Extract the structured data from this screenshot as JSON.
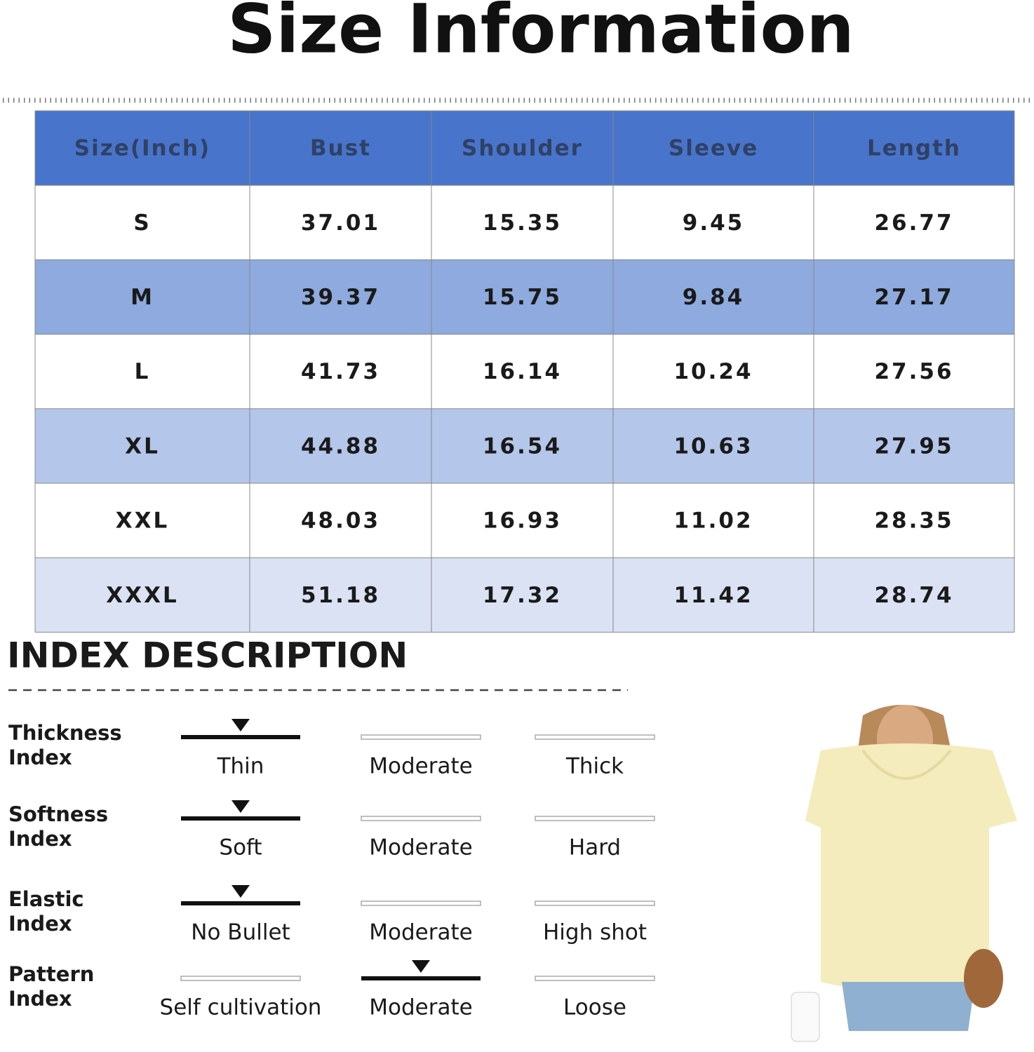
{
  "title": "Size Information",
  "table": {
    "header": [
      "Size(Inch)",
      "Bust",
      "Shoulder",
      "Sleeve",
      "Length"
    ],
    "rows": [
      [
        "S",
        "37.01",
        "15.35",
        "9.45",
        "26.77"
      ],
      [
        "M",
        "39.37",
        "15.75",
        "9.84",
        "27.17"
      ],
      [
        "L",
        "41.73",
        "16.14",
        "10.24",
        "27.56"
      ],
      [
        "XL",
        "44.88",
        "16.54",
        "10.63",
        "27.95"
      ],
      [
        "XXL",
        "48.03",
        "16.93",
        "11.02",
        "28.35"
      ],
      [
        "XXXL",
        "51.18",
        "17.32",
        "11.42",
        "28.74"
      ]
    ]
  },
  "index": {
    "title": "INDEX DESCRIPTION",
    "rows": [
      {
        "label": [
          "Thickness",
          "Index"
        ],
        "options": [
          "Thin",
          "Moderate",
          "Thick"
        ],
        "selected": 0
      },
      {
        "label": [
          "Softness",
          "Index"
        ],
        "options": [
          "Soft",
          "Moderate",
          "Hard"
        ],
        "selected": 0
      },
      {
        "label": [
          "Elastic",
          "Index"
        ],
        "options": [
          "No Bullet",
          "Moderate",
          "High shot"
        ],
        "selected": 0
      },
      {
        "label": [
          "Pattern",
          "Index"
        ],
        "options": [
          "Self cultivation",
          "Moderate",
          "Loose"
        ],
        "selected": 1
      }
    ]
  }
}
